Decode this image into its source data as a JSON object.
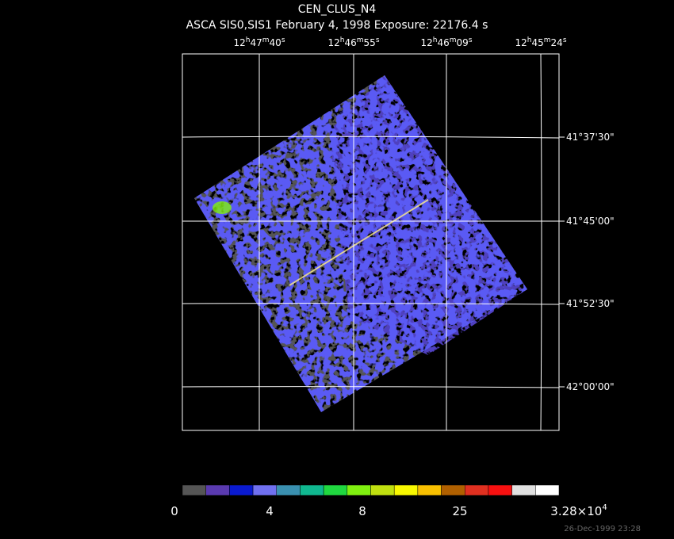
{
  "header": {
    "title": "CEN_CLUS_N4",
    "subtitle": "ASCA SIS0,SIS1 February 4, 1998 Exposure: 22176.4 s"
  },
  "ra_labels": [
    [
      "12",
      "h",
      "47",
      "m",
      "40",
      "s"
    ],
    [
      "12",
      "h",
      "46",
      "m",
      "55",
      "s"
    ],
    [
      "12",
      "h",
      "46",
      "m",
      "09",
      "s"
    ],
    [
      "12",
      "h",
      "45",
      "m",
      "24",
      "s"
    ]
  ],
  "dec_labels": [
    "41°37'30\"",
    "41°45'00\"",
    "41°52'30\"",
    "42°00'00\""
  ],
  "colorbar": {
    "colors": [
      "#555555",
      "#5a3ab0",
      "#0a1ad0",
      "#7070f0",
      "#3a90b0",
      "#10b890",
      "#20d840",
      "#80f010",
      "#c0e010",
      "#f8f800",
      "#f8c000",
      "#b06000",
      "#e03020",
      "#f81010",
      "#e0e0e0",
      "#ffffff"
    ],
    "labels": [
      "0",
      "4",
      "8",
      "25"
    ],
    "max_label": {
      "mantissa": "3.28×10",
      "exponent": "4"
    }
  },
  "footer": "26-Dec-1999 23:28"
}
